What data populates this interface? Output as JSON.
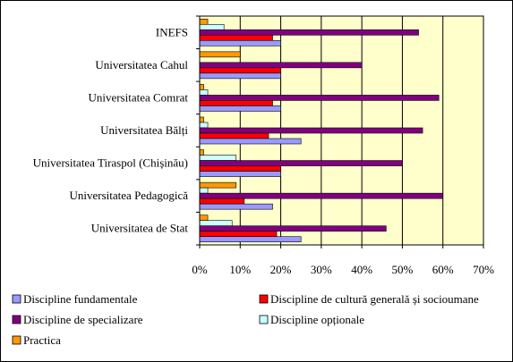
{
  "chart_data": {
    "type": "bar",
    "orientation": "horizontal",
    "stacked": false,
    "categories": [
      "INEFS",
      "Universitatea Cahul",
      "Universitatea Comrat",
      "Universitatea Bălți",
      "Universitatea Tiraspol (Chișinău)",
      "Universitatea Pedagogică",
      "Universitatea de Stat"
    ],
    "series": [
      {
        "name": "Discipline fundamentale",
        "color": "#9999FF",
        "values": [
          20,
          20,
          20,
          25,
          20,
          18,
          25
        ]
      },
      {
        "name": "Discipline de cultură generală și socioumane",
        "color": "#FF0000",
        "values": [
          18,
          20,
          18,
          17,
          20,
          11,
          19
        ]
      },
      {
        "name": "Discipline de specializare",
        "color": "#800080",
        "values": [
          54,
          40,
          59,
          55,
          50,
          60,
          46
        ]
      },
      {
        "name": "Discipline opționale",
        "color": "#CCFFFF",
        "values": [
          6,
          0,
          2,
          2,
          9,
          2,
          8
        ]
      },
      {
        "name": "Practica",
        "color": "#FF9900",
        "values": [
          2,
          10,
          1,
          1,
          1,
          9,
          2
        ]
      }
    ],
    "xlim": [
      0,
      70
    ],
    "x_ticks": [
      "0%",
      "10%",
      "20%",
      "30%",
      "40%",
      "50%",
      "60%",
      "70%"
    ],
    "value_unit": "%",
    "grid": "vertical gridlines",
    "plot_background": "#FFFFCC",
    "legend_position": "bottom",
    "title": "",
    "xlabel": "",
    "ylabel": ""
  }
}
